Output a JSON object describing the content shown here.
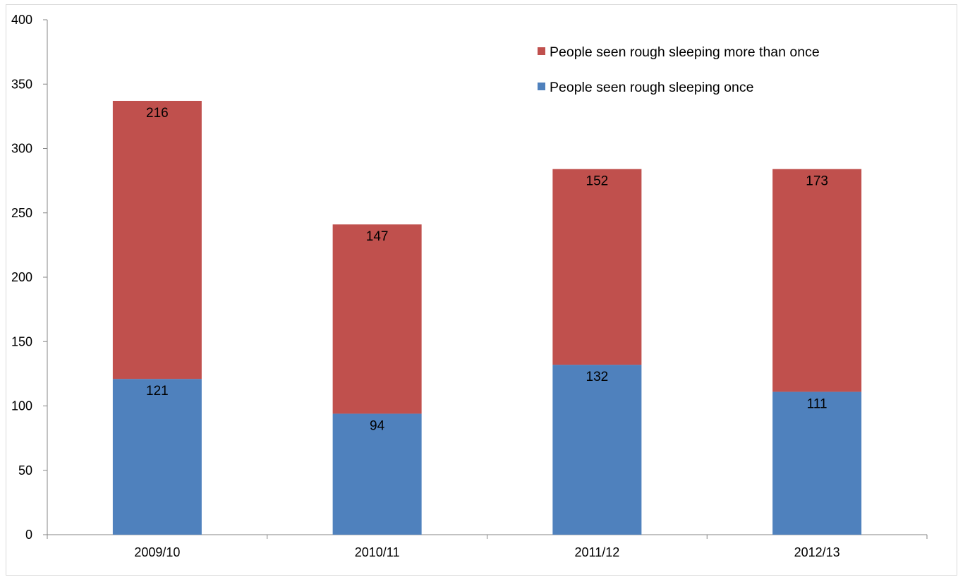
{
  "chart_data": {
    "type": "bar",
    "stacked": true,
    "categories": [
      "2009/10",
      "2010/11",
      "2011/12",
      "2012/13"
    ],
    "series": [
      {
        "name": "People seen rough sleeping once",
        "values": [
          121,
          94,
          132,
          111
        ],
        "color": "#4F81BD"
      },
      {
        "name": "People seen rough sleeping more than once",
        "values": [
          216,
          147,
          152,
          173
        ],
        "color": "#C0504D"
      }
    ],
    "ylim": [
      0,
      400
    ],
    "yticks": [
      "0",
      "50",
      "100",
      "150",
      "200",
      "250",
      "300",
      "350",
      "400"
    ],
    "legend_order": [
      1,
      0
    ],
    "legend_position": "top-right",
    "grid": false
  }
}
